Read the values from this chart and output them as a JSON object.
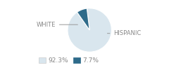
{
  "slices": [
    92.3,
    7.7
  ],
  "labels": [
    "WHITE",
    "HISPANIC"
  ],
  "colors": [
    "#d9e6ee",
    "#2e6b8a"
  ],
  "legend_labels": [
    "92.3%",
    "7.7%"
  ],
  "background_color": "#ffffff",
  "label_fontsize": 6.0,
  "legend_fontsize": 6.5,
  "startangle": 97,
  "wedge_edge_color": "#ffffff",
  "line_color": "#999999",
  "text_color": "#888888"
}
